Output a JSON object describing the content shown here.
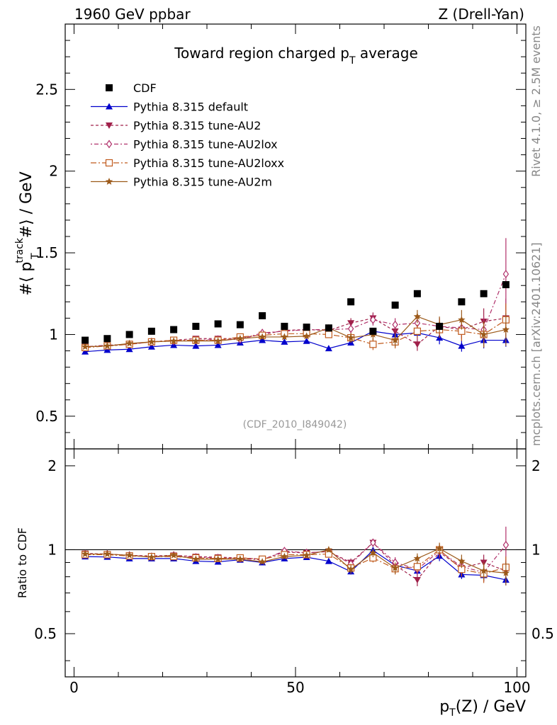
{
  "header": {
    "left": "1960 GeV ppbar",
    "right": "Z (Drell-Yan)"
  },
  "side_labels": {
    "rivet": "Rivet 4.1.0, ≥ 2.5M events",
    "mcplots": "mcplots.cern.ch [arXiv:2401.10621]"
  },
  "chart_data": {
    "type": "line",
    "title": "Toward region charged p_T average",
    "title_main": "Toward region charged p",
    "title_sub": "T",
    "title_tail": " average",
    "analysis_tag": "(CDF_2010_I849042)",
    "xlabel_main": "p",
    "xlabel_sub": "T",
    "xlabel_tail": "(Z) / GeV",
    "ylabel_main": "#⟨ p",
    "ylabel_sup": "track",
    "ylabel_sub": "T",
    "ylabel_tail": " #⟩ / GeV",
    "ratio_ylabel": "Ratio to CDF",
    "xlim": [
      -2,
      102
    ],
    "ylim": [
      0.3,
      2.9
    ],
    "ratio_ylim": [
      0.35,
      2.3
    ],
    "xticks": [
      0,
      50,
      100
    ],
    "xtick_labels": [
      "0",
      "50",
      "100"
    ],
    "yticks": [
      0.5,
      1,
      1.5,
      2,
      2.5
    ],
    "ytick_labels": [
      "0.5",
      "1",
      "1.5",
      "2",
      "2.5"
    ],
    "ratio_yticks": [
      0.5,
      1,
      2
    ],
    "ratio_ytick_labels": [
      "0.5",
      "1",
      "2"
    ],
    "x": [
      2.5,
      7.5,
      12.5,
      17.5,
      22.5,
      27.5,
      32.5,
      37.5,
      42.5,
      47.5,
      52.5,
      57.5,
      62.5,
      67.5,
      72.5,
      77.5,
      82.5,
      87.5,
      92.5,
      97.5
    ],
    "data": {
      "name": "CDF",
      "values": [
        0.965,
        0.975,
        1.0,
        1.02,
        1.03,
        1.05,
        1.065,
        1.06,
        1.115,
        1.05,
        1.045,
        1.04,
        1.2,
        1.02,
        1.18,
        1.25,
        1.05,
        1.2,
        1.25,
        1.305
      ]
    },
    "series": [
      {
        "name": "Pythia 8.315 default",
        "color": "#0000cc",
        "dash": "",
        "marker": "triangle-up",
        "values": [
          0.895,
          0.905,
          0.91,
          0.925,
          0.935,
          0.93,
          0.935,
          0.95,
          0.965,
          0.955,
          0.96,
          0.915,
          0.95,
          1.02,
          1.0,
          1.01,
          0.98,
          0.93,
          0.965,
          0.965
        ],
        "errors": [
          0.005,
          0.005,
          0.005,
          0.005,
          0.006,
          0.006,
          0.007,
          0.008,
          0.01,
          0.01,
          0.012,
          0.015,
          0.018,
          0.02,
          0.025,
          0.03,
          0.04,
          0.035,
          0.05,
          0.04
        ],
        "ratio": [
          0.945,
          0.942,
          0.93,
          0.93,
          0.93,
          0.91,
          0.905,
          0.92,
          0.9,
          0.93,
          0.94,
          0.91,
          0.835,
          0.995,
          0.88,
          0.84,
          0.95,
          0.815,
          0.81,
          0.78
        ],
        "ratio_err": [
          0.006,
          0.006,
          0.006,
          0.006,
          0.007,
          0.007,
          0.008,
          0.009,
          0.01,
          0.012,
          0.013,
          0.015,
          0.02,
          0.025,
          0.025,
          0.03,
          0.04,
          0.03,
          0.04,
          0.035
        ]
      },
      {
        "name": "Pythia 8.315 tune-AU2",
        "color": "#a0204a",
        "dash": "4,3",
        "marker": "triangle-down",
        "values": [
          0.925,
          0.93,
          0.94,
          0.955,
          0.965,
          0.975,
          0.975,
          0.975,
          1.0,
          1.025,
          1.03,
          1.025,
          1.07,
          1.1,
          1.02,
          0.94,
          1.05,
          1.03,
          1.08,
          1.1
        ],
        "errors": [
          0.006,
          0.006,
          0.006,
          0.007,
          0.007,
          0.008,
          0.009,
          0.01,
          0.012,
          0.014,
          0.016,
          0.02,
          0.03,
          0.035,
          0.04,
          0.04,
          0.05,
          0.06,
          0.08,
          0.12
        ],
        "ratio": [
          0.97,
          0.965,
          0.955,
          0.95,
          0.955,
          0.945,
          0.94,
          0.935,
          0.925,
          0.98,
          0.975,
          0.985,
          0.9,
          1.06,
          0.88,
          0.78,
          0.98,
          0.86,
          0.9,
          0.84
        ],
        "ratio_err": [
          0.006,
          0.006,
          0.007,
          0.007,
          0.008,
          0.008,
          0.009,
          0.01,
          0.012,
          0.014,
          0.016,
          0.02,
          0.03,
          0.035,
          0.04,
          0.04,
          0.05,
          0.05,
          0.06,
          0.08
        ]
      },
      {
        "name": "Pythia 8.315 tune-AU2lox",
        "color": "#b0306a",
        "dash": "2,3,6,3",
        "marker": "diamond-open",
        "values": [
          0.925,
          0.935,
          0.94,
          0.955,
          0.96,
          0.965,
          0.97,
          0.97,
          1.01,
          1.02,
          1.03,
          1.03,
          1.035,
          1.09,
          1.06,
          1.07,
          1.05,
          1.04,
          1.03,
          1.37
        ],
        "errors": [
          0.006,
          0.006,
          0.006,
          0.007,
          0.007,
          0.008,
          0.009,
          0.01,
          0.012,
          0.014,
          0.016,
          0.02,
          0.03,
          0.035,
          0.04,
          0.04,
          0.05,
          0.06,
          0.08,
          0.22
        ],
        "ratio": [
          0.965,
          0.965,
          0.955,
          0.945,
          0.955,
          0.94,
          0.935,
          0.93,
          0.92,
          0.99,
          0.975,
          0.985,
          0.89,
          1.06,
          0.9,
          0.85,
          0.99,
          0.87,
          0.83,
          1.04
        ],
        "ratio_err": [
          0.006,
          0.006,
          0.007,
          0.007,
          0.008,
          0.008,
          0.009,
          0.01,
          0.012,
          0.014,
          0.016,
          0.02,
          0.03,
          0.035,
          0.04,
          0.04,
          0.05,
          0.05,
          0.06,
          0.17
        ]
      },
      {
        "name": "Pythia 8.315 tune-AU2loxx",
        "color": "#c05a1c",
        "dash": "8,3,2,3",
        "marker": "square-open",
        "values": [
          0.92,
          0.93,
          0.94,
          0.955,
          0.965,
          0.965,
          0.965,
          0.985,
          0.995,
          1.005,
          1.005,
          1.0,
          0.98,
          0.94,
          0.955,
          1.02,
          1.03,
          1.02,
          1.0,
          1.09
        ],
        "errors": [
          0.006,
          0.006,
          0.006,
          0.007,
          0.007,
          0.008,
          0.009,
          0.01,
          0.012,
          0.014,
          0.016,
          0.02,
          0.03,
          0.035,
          0.04,
          0.04,
          0.05,
          0.06,
          0.08,
          0.1
        ],
        "ratio": [
          0.96,
          0.96,
          0.95,
          0.945,
          0.945,
          0.935,
          0.93,
          0.935,
          0.925,
          0.96,
          0.96,
          0.965,
          0.86,
          0.935,
          0.855,
          0.87,
          1.0,
          0.85,
          0.82,
          0.865
        ],
        "ratio_err": [
          0.006,
          0.006,
          0.007,
          0.007,
          0.008,
          0.008,
          0.009,
          0.01,
          0.012,
          0.014,
          0.016,
          0.02,
          0.03,
          0.035,
          0.04,
          0.04,
          0.05,
          0.05,
          0.06,
          0.08
        ]
      },
      {
        "name": "Pythia 8.315 tune-AU2m",
        "color": "#9c5a1a",
        "dash": "",
        "marker": "star",
        "values": [
          0.925,
          0.93,
          0.945,
          0.955,
          0.96,
          0.96,
          0.96,
          0.975,
          0.985,
          0.985,
          0.99,
          1.04,
          0.98,
          1.0,
          0.965,
          1.11,
          1.06,
          1.09,
          1.0,
          1.03
        ],
        "errors": [
          0.006,
          0.006,
          0.006,
          0.007,
          0.007,
          0.008,
          0.009,
          0.01,
          0.012,
          0.014,
          0.016,
          0.02,
          0.03,
          0.035,
          0.04,
          0.04,
          0.05,
          0.06,
          0.08,
          0.1
        ],
        "ratio": [
          0.965,
          0.965,
          0.955,
          0.94,
          0.955,
          0.925,
          0.925,
          0.925,
          0.905,
          0.945,
          0.955,
          1.0,
          0.85,
          0.975,
          0.86,
          0.93,
          1.01,
          0.91,
          0.84,
          0.825
        ],
        "ratio_err": [
          0.006,
          0.006,
          0.007,
          0.007,
          0.008,
          0.008,
          0.009,
          0.01,
          0.012,
          0.014,
          0.016,
          0.02,
          0.03,
          0.035,
          0.04,
          0.04,
          0.05,
          0.05,
          0.06,
          0.08
        ]
      }
    ]
  }
}
